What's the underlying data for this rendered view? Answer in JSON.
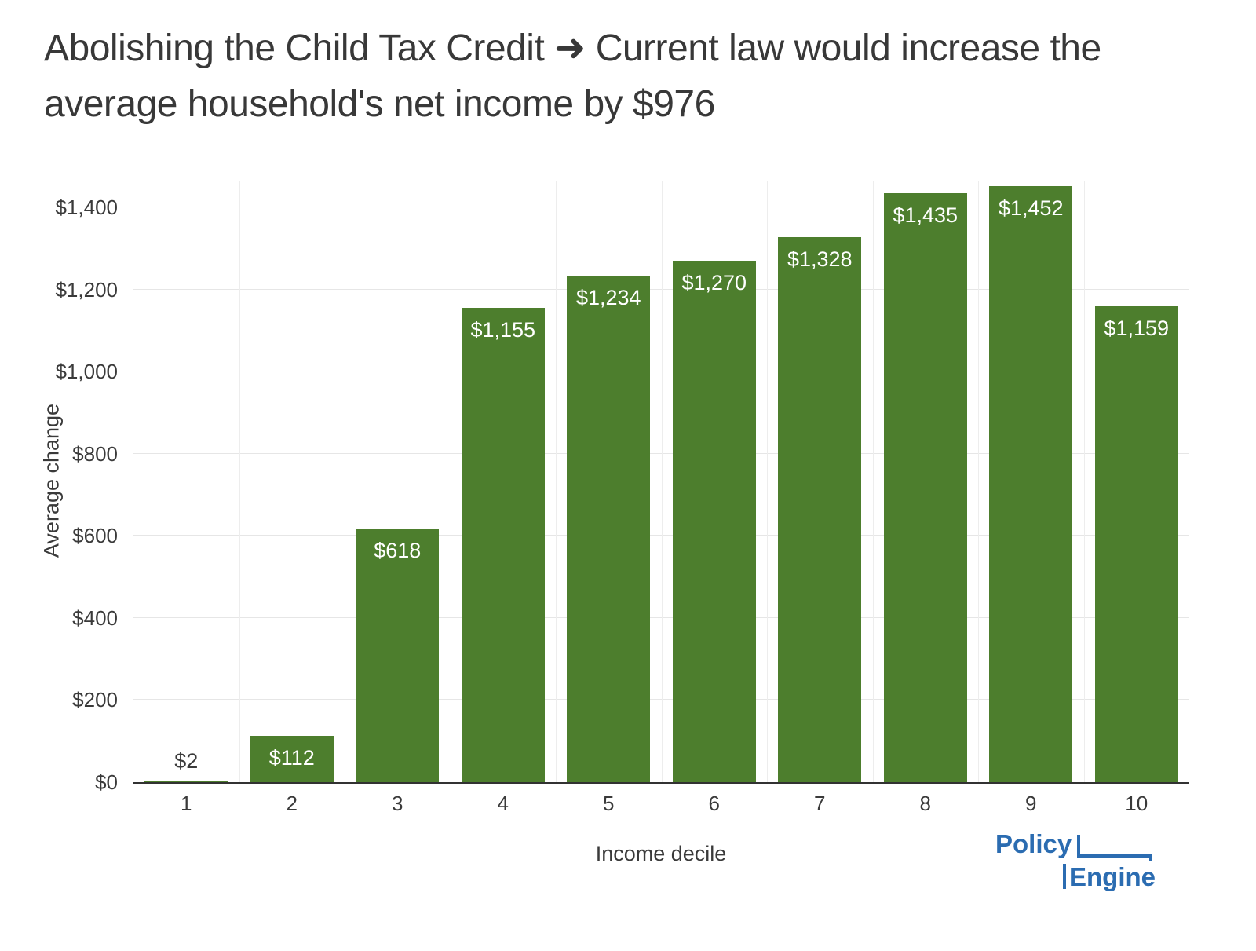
{
  "chart_data": {
    "type": "bar",
    "title": "Abolishing the Child Tax Credit ➜ Current law would increase the average household's net income by $976",
    "xlabel": "Income decile",
    "ylabel": "Average change",
    "categories": [
      "1",
      "2",
      "3",
      "4",
      "5",
      "6",
      "7",
      "8",
      "9",
      "10"
    ],
    "values": [
      2,
      112,
      618,
      1155,
      1234,
      1270,
      1328,
      1435,
      1452,
      1159
    ],
    "bar_labels": [
      "$2",
      "$112",
      "$618",
      "$1,155",
      "$1,234",
      "$1,270",
      "$1,328",
      "$1,435",
      "$1,452",
      "$1,159"
    ],
    "ylim": [
      0,
      1465
    ],
    "yticks": [
      0,
      200,
      400,
      600,
      800,
      1000,
      1200,
      1400
    ],
    "ytick_labels": [
      "$0",
      "$200",
      "$400",
      "$600",
      "$800",
      "$1,000",
      "$1,200",
      "$1,400"
    ],
    "bar_color": "#4d7e2d",
    "grid": true,
    "legend_position": "none"
  },
  "logo": {
    "line1": "Policy",
    "line2": "Engine",
    "color": "#2b6cb1"
  }
}
